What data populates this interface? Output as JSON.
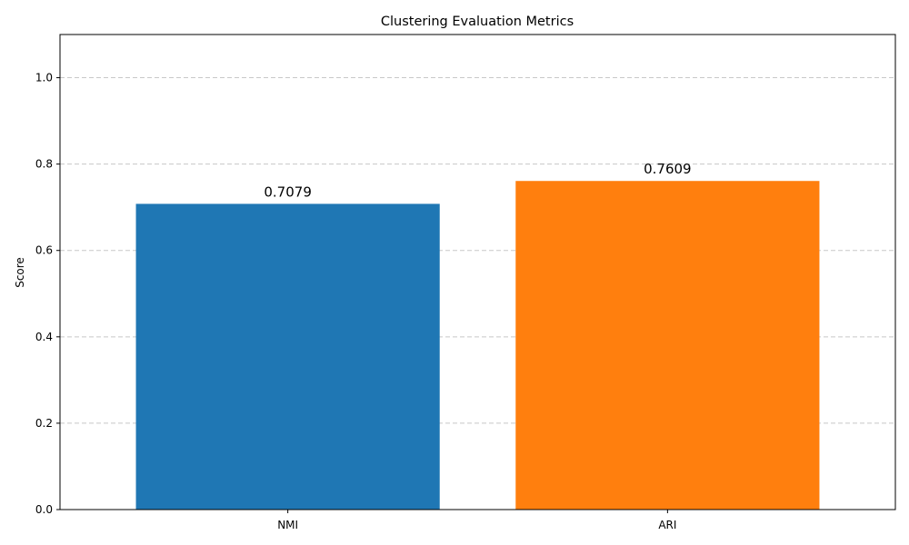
{
  "chart_data": {
    "type": "bar",
    "title": "Clustering Evaluation Metrics",
    "xlabel": "",
    "ylabel": "Score",
    "categories": [
      "NMI",
      "ARI"
    ],
    "values": [
      0.7079,
      0.7609
    ],
    "data_labels": [
      "0.7079",
      "0.7609"
    ],
    "colors": [
      "#1f77b4",
      "#ff7f0e"
    ],
    "ylim": [
      0,
      1.1
    ],
    "yticks": [
      0.0,
      0.2,
      0.4,
      0.6,
      0.8,
      1.0
    ],
    "ytick_labels": [
      "0.0",
      "0.2",
      "0.4",
      "0.6",
      "0.8",
      "1.0"
    ],
    "grid": {
      "axis": "y",
      "style": "dashed",
      "color": "#c8c8c8"
    },
    "legend": "none"
  }
}
